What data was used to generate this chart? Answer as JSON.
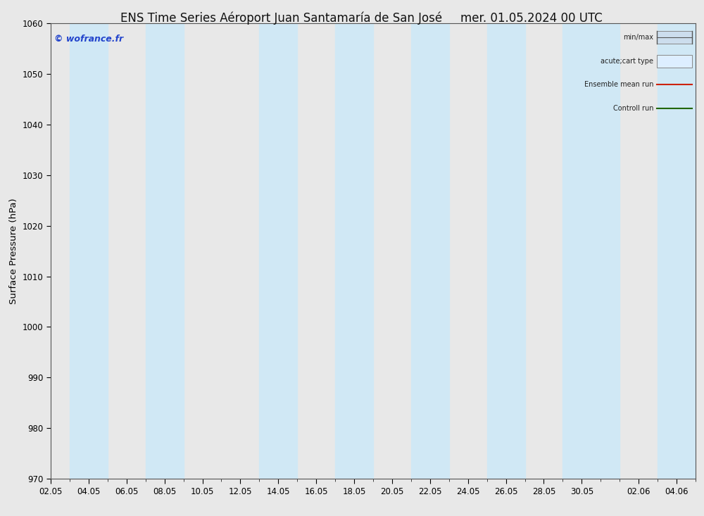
{
  "title": "ENS Time Series Aéroport Juan Santamaría de San José",
  "title_right": "mer. 01.05.2024 00 UTC",
  "ylabel": "Surface Pressure (hPa)",
  "ylim": [
    970,
    1060
  ],
  "yticks": [
    970,
    980,
    990,
    1000,
    1010,
    1020,
    1030,
    1040,
    1050,
    1060
  ],
  "background_color": "#e8e8e8",
  "plot_bg_color": "#e8e8e8",
  "watermark": "© wofrance.fr",
  "legend_items": [
    {
      "label": "min/max",
      "color": "#ccdded",
      "type": "minmax"
    },
    {
      "label": "acute;cart type",
      "color": "#ddeeff",
      "type": "box"
    },
    {
      "label": "Ensemble mean run",
      "color": "#cc2200",
      "type": "line"
    },
    {
      "label": "Controll run",
      "color": "#226600",
      "type": "line"
    }
  ],
  "x_start": 0,
  "x_end": 816,
  "xtick_labels": [
    "02.05",
    "04.05",
    "06.05",
    "08.05",
    "10.05",
    "12.05",
    "14.05",
    "16.05",
    "18.05",
    "20.05",
    "22.05",
    "24.05",
    "26.05",
    "28.05",
    "30.05",
    "02.06",
    "04.06"
  ],
  "xtick_positions": [
    0,
    48,
    96,
    144,
    192,
    240,
    288,
    336,
    384,
    432,
    480,
    528,
    576,
    624,
    672,
    744,
    792
  ],
  "shaded_bands": [
    {
      "xmin": 24,
      "xmax": 72
    },
    {
      "xmin": 120,
      "xmax": 168
    },
    {
      "xmin": 264,
      "xmax": 312
    },
    {
      "xmin": 360,
      "xmax": 408
    },
    {
      "xmin": 456,
      "xmax": 504
    },
    {
      "xmin": 552,
      "xmax": 600
    },
    {
      "xmin": 648,
      "xmax": 720
    },
    {
      "xmin": 768,
      "xmax": 816
    }
  ],
  "band_color": "#d0e8f5",
  "title_fontsize": 12,
  "tick_fontsize": 8.5,
  "ylabel_fontsize": 9.5
}
